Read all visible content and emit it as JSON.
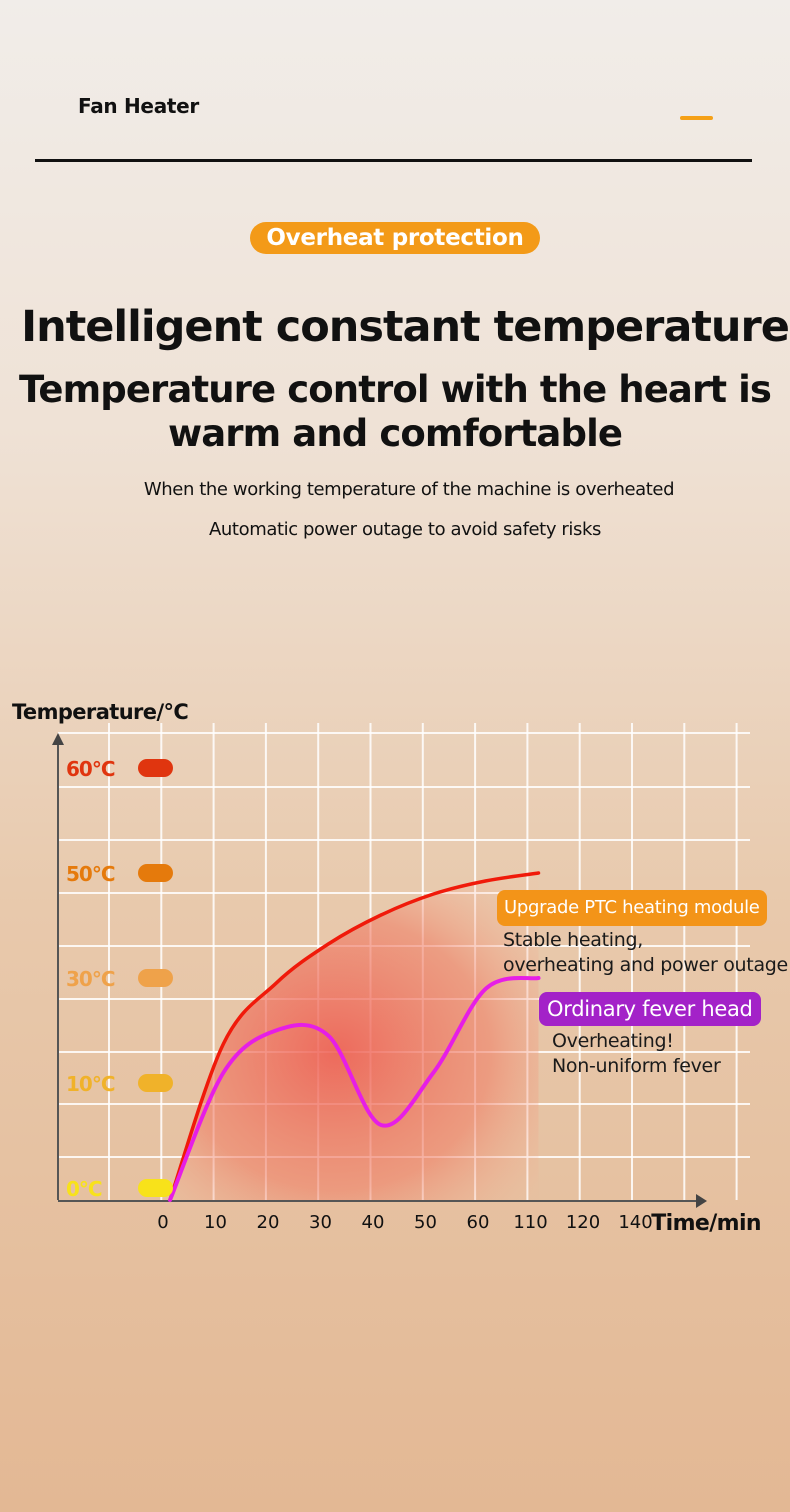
{
  "header": {
    "brand": "Fan Heater",
    "menu_color": "#f5a117"
  },
  "tag": {
    "label": "Overheat protection",
    "color": "#f39a18"
  },
  "headline": "Intelligent constant temperature",
  "subheadline_line1": "Temperature control with the heart is",
  "subheadline_line2": "warm and comfortable",
  "description": [
    "When the working temperature of the machine is overheated",
    "Automatic power outage to avoid safety risks"
  ],
  "chart_data": {
    "type": "line",
    "ylabel": "Temperature/°C",
    "xlabel": "Time/min",
    "x_ticks": [
      "0",
      "10",
      "20",
      "30",
      "40",
      "50",
      "60",
      "110",
      "120",
      "140"
    ],
    "y_ticks": [
      {
        "label": "60°C",
        "color": "#e0350f"
      },
      {
        "label": "50°C",
        "color": "#e57a0c"
      },
      {
        "label": "30°C",
        "color": "#efa24a"
      },
      {
        "label": "10°C",
        "color": "#f0b22a"
      },
      {
        "label": "0°C",
        "color": "#f8e21a"
      }
    ],
    "grid": true,
    "series": [
      {
        "name": "Upgrade PTC heating module",
        "color": "#f01a0a",
        "label_color": "#f39418",
        "note": [
          "Stable heating,",
          "overheating and power outage"
        ],
        "values": [
          0,
          17.5,
          29,
          36.5,
          42,
          46,
          48.5,
          50
        ]
      },
      {
        "name": "Ordinary fever head",
        "color": "#e61ee6",
        "label_color": "#a322c8",
        "note": [
          "Overheating!",
          "Non-uniform fever"
        ],
        "values": [
          0,
          12,
          20,
          19,
          6,
          12,
          28,
          30
        ]
      }
    ]
  }
}
